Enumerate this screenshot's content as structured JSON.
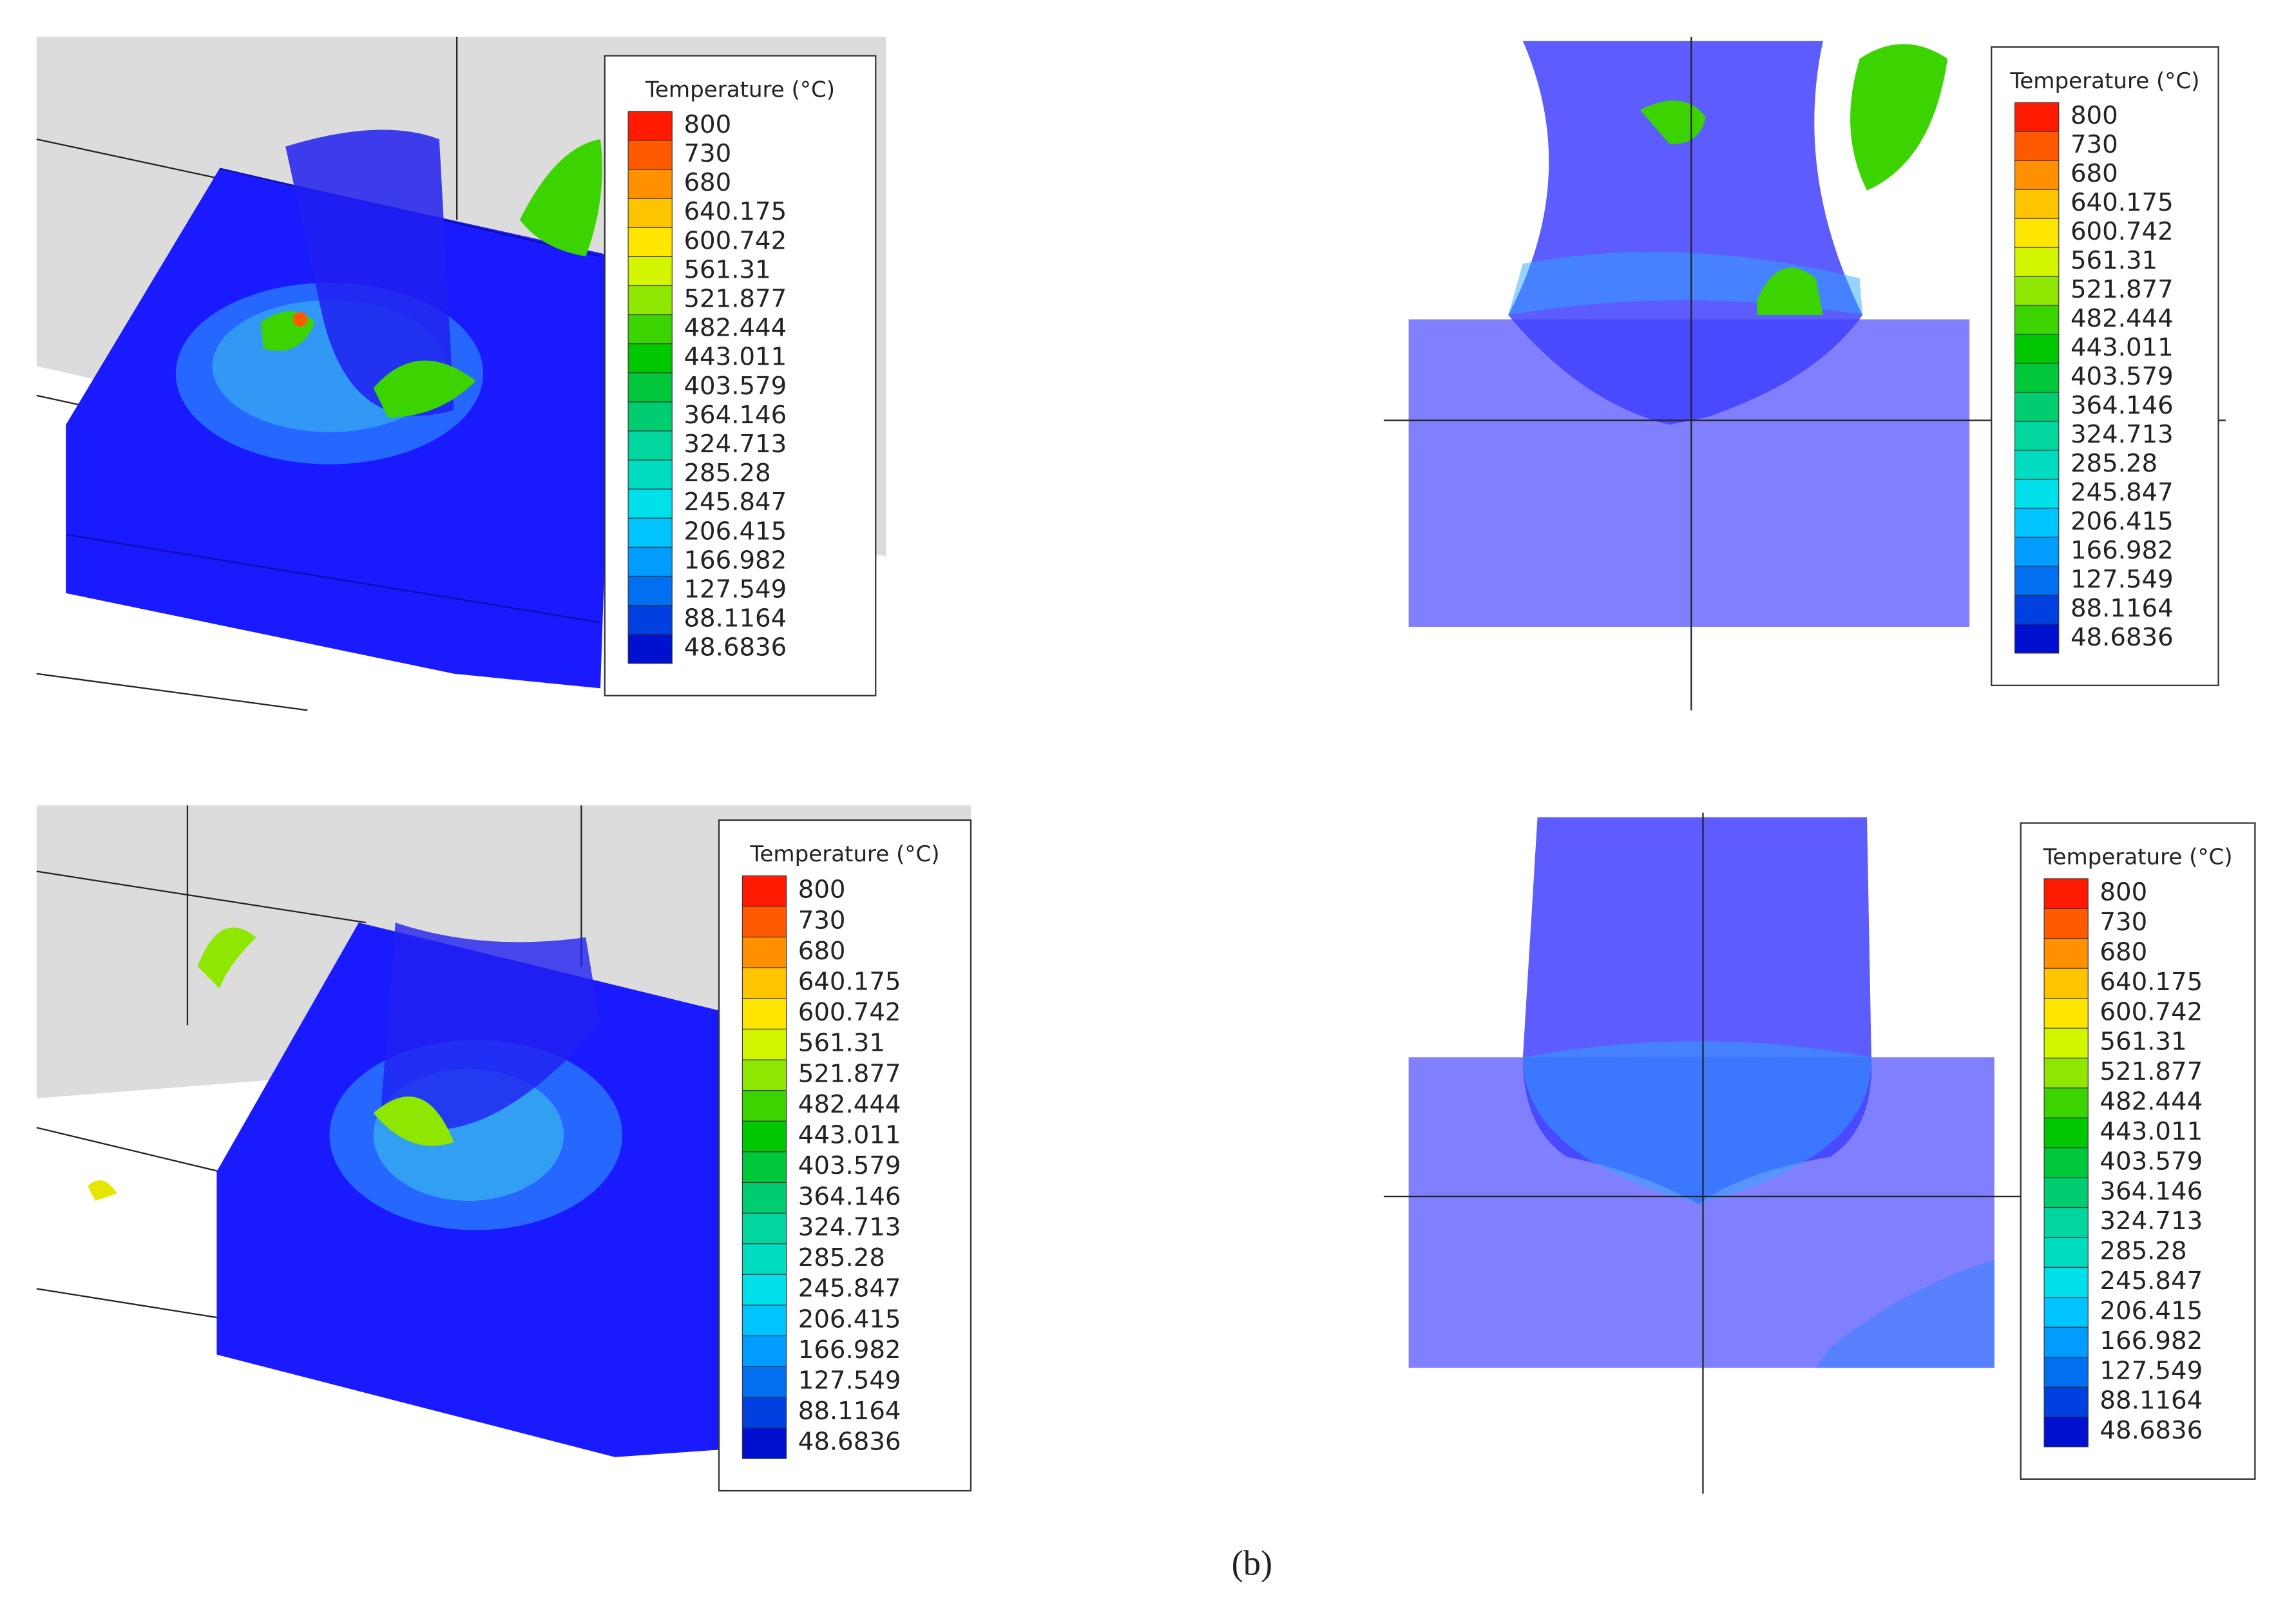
{
  "panels": [
    {
      "legend": {
        "title": "Temperature (°C)",
        "labels": [
          "800",
          "730",
          "680",
          "640.175",
          "600.742",
          "561.31",
          "521.877",
          "482.444",
          "443.011",
          "403.579",
          "364.146",
          "324.713",
          "285.28",
          "245.847",
          "206.415",
          "166.982",
          "127.549",
          "88.1164",
          "48.6836"
        ]
      }
    },
    {
      "legend": {
        "title": "Temperature (°C)",
        "labels": [
          "800",
          "730",
          "680",
          "640.175",
          "600.742",
          "561.31",
          "521.877",
          "482.444",
          "443.011",
          "403.579",
          "364.146",
          "324.713",
          "285.28",
          "245.847",
          "206.415",
          "166.982",
          "127.549",
          "88.1164",
          "48.6836"
        ]
      }
    },
    {
      "legend": {
        "title": "Temperature (°C)",
        "labels": [
          "800",
          "730",
          "680",
          "640.175",
          "600.742",
          "561.31",
          "521.877",
          "482.444",
          "443.011",
          "403.579",
          "364.146",
          "324.713",
          "285.28",
          "245.847",
          "206.415",
          "166.982",
          "127.549",
          "88.1164",
          "48.6836"
        ]
      }
    },
    {
      "legend": {
        "title": "Temperature (°C)",
        "labels": [
          "800",
          "730",
          "680",
          "640.175",
          "600.742",
          "561.31",
          "521.877",
          "482.444",
          "443.011",
          "403.579",
          "364.146",
          "324.713",
          "285.28",
          "245.847",
          "206.415",
          "166.982",
          "127.549",
          "88.1164",
          "48.6836"
        ]
      }
    }
  ],
  "colormap": [
    "#ff1a00",
    "#ff5a00",
    "#ff9000",
    "#ffc400",
    "#ffe600",
    "#d4f500",
    "#8fe600",
    "#3cd400",
    "#00c800",
    "#00c83a",
    "#00cc70",
    "#00d69e",
    "#00dcc0",
    "#00e0ea",
    "#00c4ff",
    "#009cff",
    "#0070f0",
    "#0040e0",
    "#0010d0"
  ],
  "caption": "(b)"
}
